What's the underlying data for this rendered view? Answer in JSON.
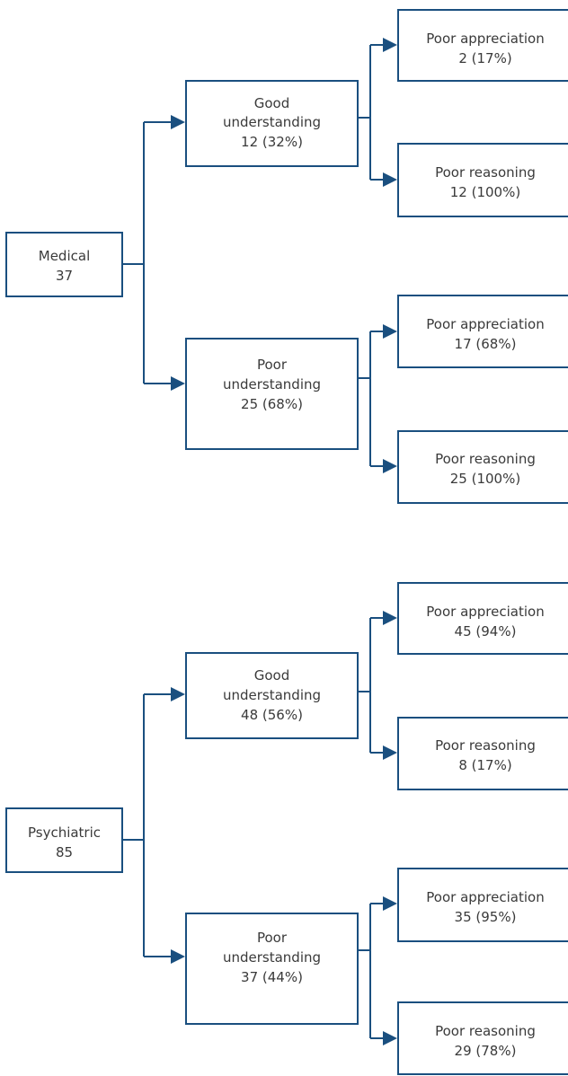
{
  "colors": {
    "stroke": "#1a4f7f",
    "text": "#3a3a3a",
    "background": "#ffffff"
  },
  "medical": {
    "root": {
      "label": "Medical",
      "count": "37"
    },
    "good_understanding": {
      "line1": "Good",
      "line2": "understanding",
      "line3": "12 (32%)",
      "appreciation": {
        "label": "Poor appreciation",
        "value": "2 (17%)"
      },
      "reasoning": {
        "label": "Poor reasoning",
        "value": "12 (100%)"
      }
    },
    "poor_understanding": {
      "line1": "Poor",
      "line2": "understanding",
      "line3": "25 (68%)",
      "appreciation": {
        "label": "Poor appreciation",
        "value": "17 (68%)"
      },
      "reasoning": {
        "label": "Poor reasoning",
        "value": "25 (100%)"
      }
    }
  },
  "psychiatric": {
    "root": {
      "label": "Psychiatric",
      "count": "85"
    },
    "good_understanding": {
      "line1": "Good",
      "line2": "understanding",
      "line3": "48 (56%)",
      "appreciation": {
        "label": "Poor appreciation",
        "value": "45 (94%)"
      },
      "reasoning": {
        "label": "Poor reasoning",
        "value": "8 (17%)"
      }
    },
    "poor_understanding": {
      "line1": "Poor",
      "line2": "understanding",
      "line3": "37 (44%)",
      "appreciation": {
        "label": "Poor appreciation",
        "value": "35 (95%)"
      },
      "reasoning": {
        "label": "Poor reasoning",
        "value": "29 (78%)"
      }
    }
  }
}
